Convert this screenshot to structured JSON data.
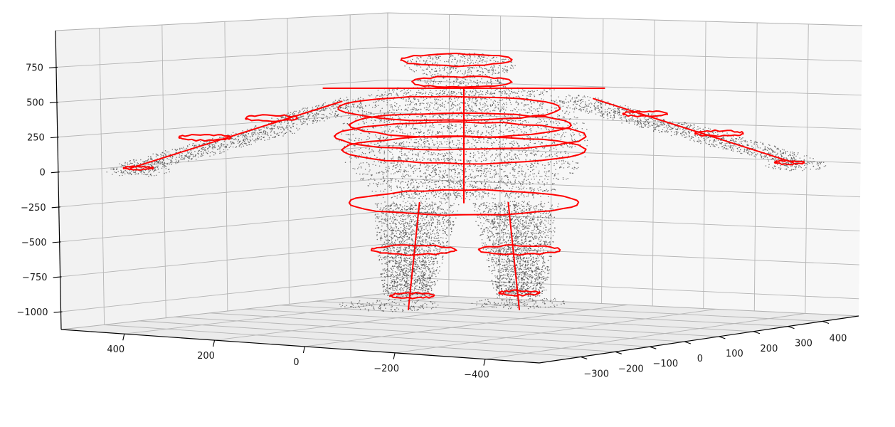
{
  "chart_data": {
    "type": "scatter3d",
    "title": "",
    "xlabel": "",
    "ylabel": "",
    "zlabel": "",
    "grid": true,
    "colors": {
      "points": "#404040",
      "skeleton": "#ff0000",
      "pane_back": "#f2f2f2",
      "pane_side": "#f7f7f7",
      "pane_floor": "#ebebeb",
      "grid": "#b4b4b4"
    },
    "axes": {
      "x": {
        "ticks": [
          400,
          200,
          0,
          -200,
          -400
        ],
        "tick_labels": [
          "400",
          "200",
          "0",
          "−200",
          "−400"
        ]
      },
      "y": {
        "ticks": [
          -300,
          -200,
          -100,
          0,
          100,
          200,
          300,
          400
        ],
        "tick_labels": [
          "−300",
          "−200",
          "−100",
          "0",
          "100",
          "200",
          "300",
          "400"
        ]
      },
      "z": {
        "ticks": [
          750,
          500,
          250,
          0,
          -250,
          -500,
          -750,
          -1000
        ],
        "tick_labels": [
          "750",
          "500",
          "250",
          "0",
          "−250",
          "−500",
          "−750",
          "−1000"
        ]
      }
    },
    "series": [
      {
        "kind": "points",
        "count_estimate": 6000,
        "body_regions": [
          {
            "part": "head",
            "z_range": [
              650,
              850
            ],
            "x_range": [
              -80,
              80
            ]
          },
          {
            "part": "torso",
            "z_range": [
              -200,
              600
            ],
            "x_range": [
              -190,
              190
            ]
          },
          {
            "part": "left-arm",
            "z_range": [
              0,
              500
            ],
            "x_range": [
              -950,
              -200
            ]
          },
          {
            "part": "right-arm",
            "z_range": [
              0,
              500
            ],
            "x_range": [
              200,
              1000
            ]
          },
          {
            "part": "left-leg",
            "z_range": [
              -1050,
              -200
            ],
            "x_range": [
              -220,
              -10
            ]
          },
          {
            "part": "right-leg",
            "z_range": [
              -1050,
              -200
            ],
            "x_range": [
              10,
              220
            ]
          }
        ]
      },
      {
        "kind": "skeleton",
        "segments": [
          {
            "part": "spine",
            "from": [
              0,
              0,
              600
            ],
            "to": [
              0,
              0,
              -230
            ]
          },
          {
            "part": "shoulder-line",
            "from": [
              -380,
              0,
              595
            ],
            "to": [
              380,
              0,
              595
            ]
          },
          {
            "part": "left-arm",
            "from": [
              -330,
              0,
              500
            ],
            "to": [
              -900,
              0,
              20
            ]
          },
          {
            "part": "right-arm",
            "from": [
              350,
              0,
              520
            ],
            "to": [
              890,
              0,
              60
            ]
          },
          {
            "part": "left-leg",
            "from": [
              -120,
              0,
              -230
            ],
            "to": [
              -150,
              0,
              -1000
            ]
          },
          {
            "part": "right-leg",
            "from": [
              120,
              0,
              -230
            ],
            "to": [
              150,
              0,
              -1000
            ]
          }
        ],
        "rings": [
          {
            "part": "head-top",
            "z": 800,
            "x_center": -20,
            "x_half_width": 150
          },
          {
            "part": "neck",
            "z": 640,
            "x_center": -5,
            "x_half_width": 135
          },
          {
            "part": "chest",
            "z": 450,
            "x_center": -40,
            "x_half_width": 300
          },
          {
            "part": "upper-abdomen",
            "z": 330,
            "x_center": -10,
            "x_half_width": 300
          },
          {
            "part": "waist",
            "z": 250,
            "x_center": -10,
            "x_half_width": 340
          },
          {
            "part": "belly",
            "z": 150,
            "x_center": 0,
            "x_half_width": 330
          },
          {
            "part": "hips",
            "z": -230,
            "x_center": 0,
            "x_half_width": 310
          },
          {
            "part": "left-knee",
            "z": -570,
            "x_center": -135,
            "x_half_width": 115
          },
          {
            "part": "right-knee",
            "z": -570,
            "x_center": 150,
            "x_half_width": 110
          },
          {
            "part": "left-ankle",
            "z": -900,
            "x_center": -140,
            "x_half_width": 60
          },
          {
            "part": "right-ankle",
            "z": -880,
            "x_center": 150,
            "x_half_width": 55
          },
          {
            "part": "left-elbow",
            "z": 380,
            "x_center": -520,
            "x_half_width": 70
          },
          {
            "part": "right-elbow",
            "z": 410,
            "x_center": 490,
            "x_half_width": 60
          },
          {
            "part": "left-forearm",
            "z": 240,
            "x_center": -700,
            "x_half_width": 70
          },
          {
            "part": "right-forearm",
            "z": 270,
            "x_center": 690,
            "x_half_width": 65
          },
          {
            "part": "left-wrist",
            "z": 20,
            "x_center": -880,
            "x_half_width": 40
          },
          {
            "part": "right-wrist",
            "z": 60,
            "x_center": 880,
            "x_half_width": 40
          }
        ]
      }
    ]
  }
}
